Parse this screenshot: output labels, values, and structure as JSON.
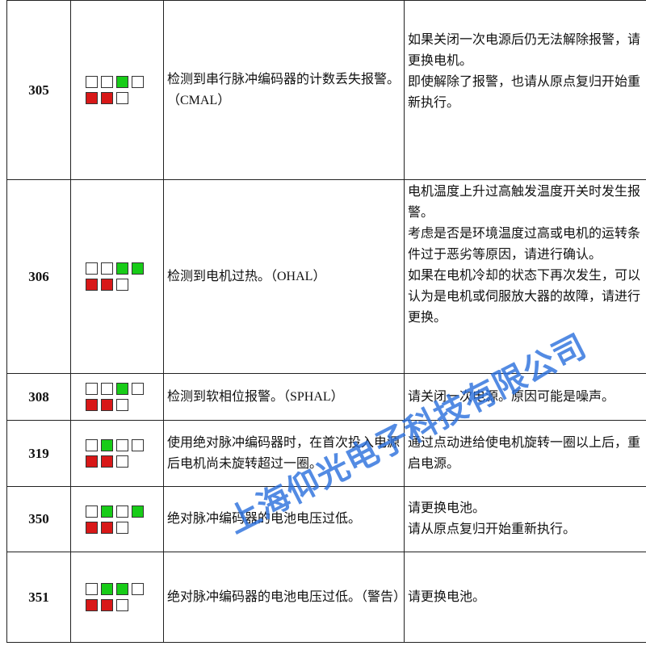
{
  "rows": [
    {
      "code": "305",
      "description": "检测到串行脉冲编码器的计数丢失报警。（CMAL）",
      "remedy": [
        "如果关闭一次电源后仍无法解除报警，请更换电机。",
        "即使解除了报警，也请从原点复归开始重新执行。"
      ]
    },
    {
      "code": "306",
      "description": "检测到电机过热。（OHAL）",
      "remedy": [
        "电机温度上升过高触发温度开关时发生报警。",
        "考虑是否是环境温度过高或电机的运转条件过于恶劣等原因，请进行确认。",
        "如果在电机冷却的状态下再次发生，可以认为是电机或伺服放大器的故障，请进行更换。"
      ]
    },
    {
      "code": "308",
      "description": "检测到软相位报警。（SPHAL）",
      "remedy": [
        "请关闭一次电源。原因可能是噪声。"
      ]
    },
    {
      "code": "319",
      "description": "使用绝对脉冲编码器时，在首次投入电源后电机尚未旋转超过一圈。",
      "remedy": [
        "通过点动进给使电机旋转一圈以上后，重启电源。"
      ]
    },
    {
      "code": "350",
      "description": "绝对脉冲编码器的电池电压过低。",
      "remedy": [
        "请更换电池。",
        "请从原点复归开始重新执行。"
      ]
    },
    {
      "code": "351",
      "description": "绝对脉冲编码器的电池电压过低。（警告）",
      "remedy": [
        "请更换电池。"
      ]
    }
  ],
  "watermark": "上海仰光电子科技有限公司"
}
